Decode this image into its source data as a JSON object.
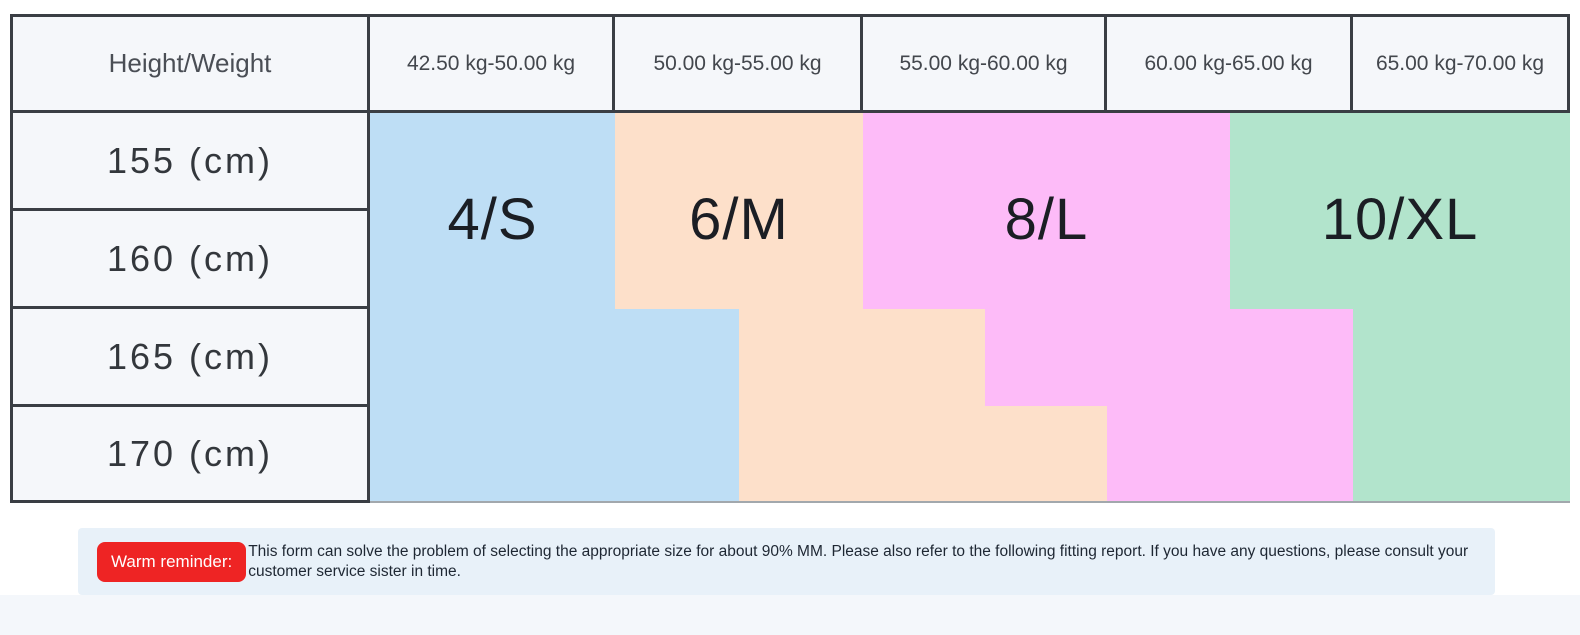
{
  "page": {
    "background": "#ffffff"
  },
  "table": {
    "corner_header": "Height/Weight",
    "weight_headers": [
      "42.50 kg-50.00 kg",
      "50.00 kg-55.00 kg",
      "55.00 kg-60.00 kg",
      "60.00 kg-65.00 kg",
      "65.00 kg-70.00 kg"
    ],
    "height_rows": [
      "155 (cm)",
      "160 (cm)",
      "165 (cm)",
      "170 (cm)"
    ],
    "sizes": {
      "s": {
        "label": "4/S",
        "color": "#bedef5"
      },
      "m": {
        "label": "6/M",
        "color": "#fde0ca"
      },
      "l": {
        "label": "8/L",
        "color": "#fdbbf8"
      },
      "xl": {
        "label": "10/XL",
        "color": "#b2e4cc"
      }
    },
    "line_color": "#3a3e44",
    "cell_background": "#f5f7fa"
  },
  "chart_data": {
    "type": "table",
    "title": "Height/Weight size chart",
    "columns": [
      "Height/Weight",
      "42.50 kg-50.00 kg",
      "50.00 kg-55.00 kg",
      "55.00 kg-60.00 kg",
      "60.00 kg-65.00 kg",
      "65.00 kg-70.00 kg"
    ],
    "rows": [
      "155 (cm)",
      "160 (cm)",
      "165 (cm)",
      "170 (cm)"
    ],
    "grid": [
      [
        "4/S",
        "6/M",
        "8/L",
        "8/L / 10/XL",
        "10/XL"
      ],
      [
        "4/S",
        "6/M",
        "8/L",
        "8/L / 10/XL",
        "10/XL"
      ],
      [
        "4/S",
        "4/S / 6/M",
        "6/M / 8/L",
        "8/L",
        "10/XL"
      ],
      [
        "4/S",
        "4/S / 6/M",
        "6/M",
        "8/L",
        "10/XL"
      ]
    ],
    "legend_position": "none",
    "notes": "Four colored size regions (4/S blue, 6/M peach, 8/L magenta, 10/XL green) form a staircase: region boundaries shift right by half a weight column as height increases past 160 cm."
  },
  "reminder": {
    "badge": "Warm reminder:",
    "badge_color": "#ee2424",
    "band_color": "#e8f1f9",
    "text": "This form can solve the problem of selecting the appropriate size for about 90% MM. Please also refer to the following fitting report. If you have any questions, please consult your customer service sister in time."
  }
}
